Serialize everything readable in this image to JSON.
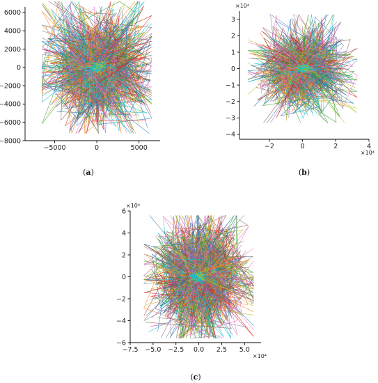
{
  "chart_data": [
    {
      "id": "a",
      "type": "line",
      "caption": "a",
      "xlim": [
        -8500,
        7500
      ],
      "ylim": [
        -8000,
        6600
      ],
      "x_ticks": [
        -5000,
        0,
        5000
      ],
      "x_tick_labels": [
        "−5000",
        "0",
        "5000"
      ],
      "y_ticks": [
        -8000,
        -6000,
        -4000,
        -2000,
        0,
        2000,
        4000,
        6000
      ],
      "y_tick_labels": [
        "−8000",
        "−6000",
        "−4000",
        "−2000",
        "0",
        "2000",
        "4000",
        "6000"
      ],
      "x_multiplier": "",
      "y_multiplier": "",
      "spread": [
        3200,
        3100
      ],
      "extent": [
        6500,
        7200
      ],
      "lines": 480,
      "seed": 11
    },
    {
      "id": "b",
      "type": "line",
      "caption": "b",
      "xlim": [
        -3.8,
        4
      ],
      "ylim": [
        -4.3,
        3.5
      ],
      "x_ticks": [
        -2,
        0,
        2,
        4
      ],
      "x_tick_labels": [
        "−2",
        "0",
        "2",
        "4"
      ],
      "y_ticks": [
        -4,
        -3,
        -2,
        -1,
        0,
        1,
        2,
        3
      ],
      "y_tick_labels": [
        "−4",
        "−3",
        "−2",
        "−1",
        "0",
        "1",
        "2",
        "3"
      ],
      "x_multiplier": "×10⁴",
      "y_multiplier": "×10⁴",
      "spread": [
        1.3,
        1.2
      ],
      "extent": [
        3.3,
        3.3
      ],
      "lines": 480,
      "seed": 23
    },
    {
      "id": "c",
      "type": "line",
      "caption": "c",
      "xlim": [
        -7.5,
        6.8
      ],
      "ylim": [
        -6,
        6
      ],
      "x_ticks": [
        -7.5,
        -5,
        -2.5,
        0,
        2.5,
        5
      ],
      "x_tick_labels": [
        "−7.5",
        "−5.0",
        "−2.5",
        "0.0",
        "2.5",
        "5.0"
      ],
      "y_ticks": [
        -6,
        -4,
        -2,
        0,
        2,
        4,
        6
      ],
      "y_tick_labels": [
        "−6",
        "−4",
        "−2",
        "0",
        "2",
        "4",
        "6"
      ],
      "x_multiplier": "×10⁴",
      "y_multiplier": "×10⁴",
      "spread": [
        2.6,
        2.6
      ],
      "extent": [
        6.0,
        5.6
      ],
      "lines": 520,
      "seed": 37
    }
  ],
  "palette": [
    "#1f77b4",
    "#ff7f0e",
    "#2ca02c",
    "#d62728",
    "#9467bd",
    "#8c564b",
    "#e377c2",
    "#7f7f7f",
    "#bcbd22",
    "#17becf"
  ]
}
